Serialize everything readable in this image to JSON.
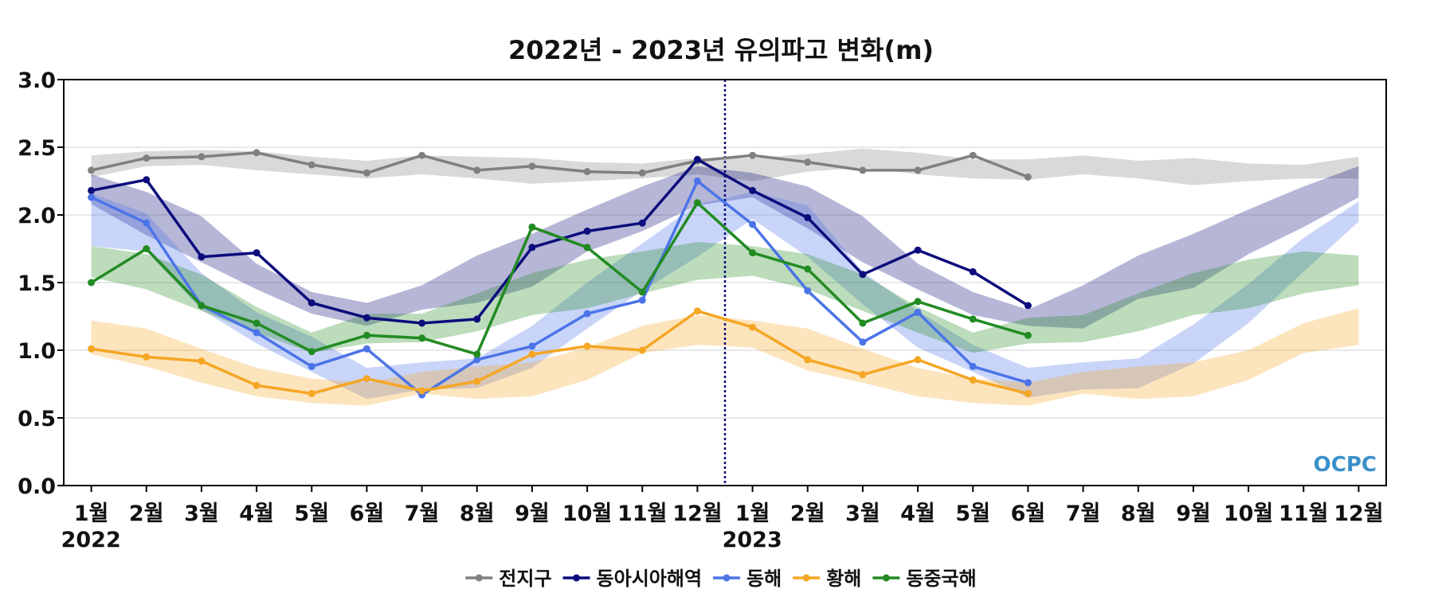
{
  "chart_data": {
    "type": "line",
    "title": "2022년 - 2023년 유의파고 변화(m)",
    "ylim": [
      0,
      3
    ],
    "yticks": [
      "0.0",
      "0.5",
      "1.0",
      "1.5",
      "2.0",
      "2.5",
      "3.0"
    ],
    "x_tick_labels": [
      "1월",
      "2월",
      "3월",
      "4월",
      "5월",
      "6월",
      "7월",
      "8월",
      "9월",
      "10월",
      "11월",
      "12월",
      "1월",
      "2월",
      "3월",
      "4월",
      "5월",
      "6월",
      "7월",
      "8월",
      "9월",
      "10월",
      "11월",
      "12월"
    ],
    "year_labels": [
      {
        "label": "2022",
        "at_index": 0
      },
      {
        "label": "2023",
        "at_index": 12
      }
    ],
    "divider_between_index": [
      11,
      12
    ],
    "grid": "horizontal",
    "legend_position": "bottom-center",
    "logo_text": "OCPC",
    "series": [
      {
        "name": "전지구",
        "color": "#808080",
        "values": [
          2.33,
          2.42,
          2.43,
          2.46,
          2.37,
          2.31,
          2.44,
          2.33,
          2.36,
          2.32,
          2.31,
          2.4,
          2.44,
          2.39,
          2.33,
          2.33,
          2.44,
          2.28
        ],
        "band_lower": [
          2.28,
          2.36,
          2.37,
          2.33,
          2.3,
          2.27,
          2.3,
          2.27,
          2.23,
          2.25,
          2.27,
          2.3,
          2.25,
          2.32,
          2.35,
          2.3,
          2.27,
          2.26,
          2.3,
          2.27,
          2.22,
          2.25,
          2.27,
          2.27
        ],
        "band_upper": [
          2.44,
          2.47,
          2.48,
          2.47,
          2.43,
          2.4,
          2.44,
          2.43,
          2.42,
          2.39,
          2.38,
          2.42,
          2.42,
          2.45,
          2.49,
          2.46,
          2.41,
          2.41,
          2.44,
          2.4,
          2.42,
          2.38,
          2.37,
          2.43
        ]
      },
      {
        "name": "동아시아해역",
        "color": "#0c0c7c",
        "values": [
          2.18,
          2.26,
          1.69,
          1.72,
          1.35,
          1.24,
          1.2,
          1.23,
          1.76,
          1.88,
          1.94,
          2.41,
          2.18,
          1.98,
          1.56,
          1.74,
          1.58,
          1.33
        ],
        "band_lower": [
          2.08,
          1.85,
          1.65,
          1.45,
          1.27,
          1.18,
          1.3,
          1.35,
          1.47,
          1.73,
          1.88,
          2.07,
          2.13,
          1.9,
          1.65,
          1.45,
          1.26,
          1.18,
          1.16,
          1.38,
          1.46,
          1.71,
          1.91,
          2.13
        ],
        "band_upper": [
          2.3,
          2.17,
          1.99,
          1.64,
          1.43,
          1.35,
          1.48,
          1.7,
          1.86,
          2.04,
          2.21,
          2.36,
          2.31,
          2.21,
          1.99,
          1.64,
          1.43,
          1.3,
          1.48,
          1.7,
          1.86,
          2.04,
          2.21,
          2.36
        ]
      },
      {
        "name": "동해",
        "color": "#4c74e8",
        "values": [
          2.13,
          1.94,
          1.33,
          1.13,
          0.88,
          1.01,
          0.67,
          0.93,
          1.03,
          1.27,
          1.37,
          2.25,
          1.93,
          1.44,
          1.06,
          1.28,
          0.88,
          0.76
        ],
        "band_lower": [
          1.77,
          1.73,
          1.3,
          1.05,
          0.84,
          0.64,
          0.71,
          0.72,
          0.87,
          1.16,
          1.44,
          1.69,
          1.97,
          1.69,
          1.34,
          1.02,
          0.84,
          0.65,
          0.71,
          0.72,
          0.9,
          1.2,
          1.58,
          1.95
        ],
        "band_upper": [
          2.16,
          2.01,
          1.57,
          1.28,
          1.1,
          0.87,
          0.91,
          0.94,
          1.18,
          1.5,
          1.79,
          2.08,
          2.17,
          2.07,
          1.58,
          1.29,
          1.04,
          0.87,
          0.91,
          0.94,
          1.19,
          1.49,
          1.83,
          2.1
        ]
      },
      {
        "name": "황해",
        "color": "#f5a623",
        "values": [
          1.01,
          0.95,
          0.92,
          0.74,
          0.68,
          0.79,
          0.7,
          0.77,
          0.97,
          1.03,
          1.0,
          1.29,
          1.17,
          0.93,
          0.82,
          0.93,
          0.78,
          0.68
        ],
        "band_lower": [
          0.97,
          0.88,
          0.76,
          0.66,
          0.61,
          0.59,
          0.68,
          0.64,
          0.66,
          0.78,
          0.98,
          1.04,
          1.02,
          0.85,
          0.76,
          0.66,
          0.61,
          0.59,
          0.68,
          0.64,
          0.66,
          0.78,
          0.98,
          1.04
        ],
        "band_upper": [
          1.22,
          1.16,
          1.01,
          0.87,
          0.79,
          0.76,
          0.84,
          0.88,
          0.91,
          1.02,
          1.18,
          1.26,
          1.22,
          1.16,
          1.01,
          0.87,
          0.79,
          0.76,
          0.84,
          0.88,
          0.91,
          1.0,
          1.2,
          1.31
        ]
      },
      {
        "name": "동중국해",
        "color": "#228b22",
        "values": [
          1.5,
          1.75,
          1.33,
          1.2,
          0.99,
          1.11,
          1.09,
          0.97,
          1.91,
          1.76,
          1.43,
          2.09,
          1.72,
          1.6,
          1.2,
          1.36,
          1.23,
          1.11
        ],
        "band_lower": [
          1.54,
          1.45,
          1.29,
          1.13,
          0.98,
          1.05,
          1.06,
          1.14,
          1.26,
          1.31,
          1.42,
          1.52,
          1.55,
          1.45,
          1.29,
          1.13,
          0.98,
          1.05,
          1.06,
          1.14,
          1.26,
          1.31,
          1.42,
          1.48
        ],
        "band_upper": [
          1.77,
          1.71,
          1.56,
          1.32,
          1.13,
          1.27,
          1.27,
          1.42,
          1.57,
          1.67,
          1.73,
          1.8,
          1.77,
          1.71,
          1.56,
          1.32,
          1.13,
          1.24,
          1.26,
          1.42,
          1.57,
          1.67,
          1.73,
          1.7
        ]
      }
    ]
  }
}
